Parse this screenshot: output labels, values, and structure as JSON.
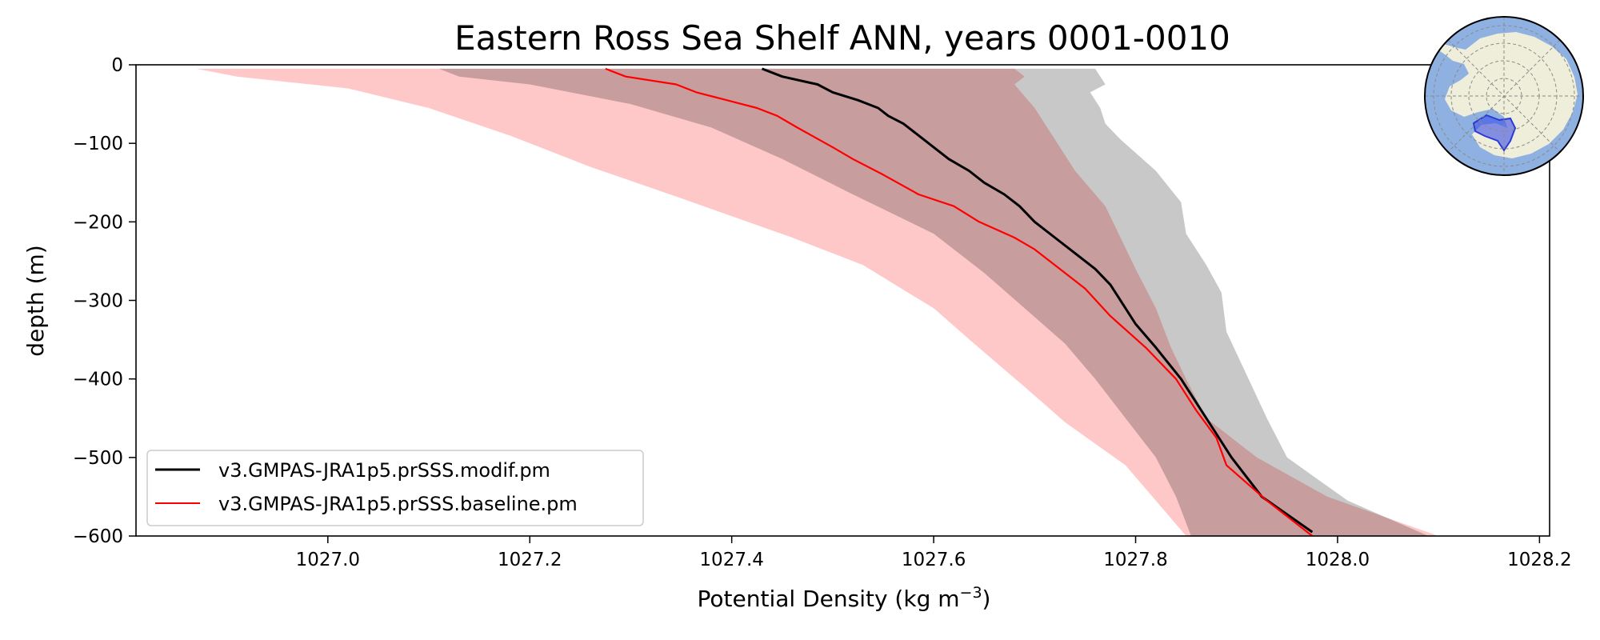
{
  "chart_data": {
    "type": "line",
    "title": "Eastern Ross Sea Shelf ANN, years 0001-0010",
    "xlabel_main": "Potential Density (kg m",
    "xlabel_sup": "−3",
    "xlabel_end": ")",
    "ylabel": "depth (m)",
    "xlim": [
      1026.81,
      1028.21
    ],
    "ylim": [
      -600,
      0
    ],
    "xticks": [
      1027.0,
      1027.2,
      1027.4,
      1027.6,
      1027.8,
      1028.0,
      1028.2
    ],
    "xtick_labels": [
      "1027.0",
      "1027.2",
      "1027.4",
      "1027.6",
      "1027.8",
      "1028.0",
      "1028.2"
    ],
    "yticks": [
      0,
      -100,
      -200,
      -300,
      -400,
      -500,
      -600
    ],
    "ytick_labels": [
      "0",
      "−100",
      "−200",
      "−300",
      "−400",
      "−500",
      "−600"
    ],
    "legend_position": "lower-left",
    "series": [
      {
        "name": "v3.GMPAS-JRA1p5.prSSS.modif.pm",
        "color": "#000000",
        "line": [
          [
            1027.43,
            -5
          ],
          [
            1027.45,
            -15
          ],
          [
            1027.485,
            -25
          ],
          [
            1027.5,
            -35
          ],
          [
            1027.525,
            -45
          ],
          [
            1027.545,
            -55
          ],
          [
            1027.555,
            -65
          ],
          [
            1027.57,
            -75
          ],
          [
            1027.585,
            -90
          ],
          [
            1027.6,
            -105
          ],
          [
            1027.615,
            -120
          ],
          [
            1027.635,
            -135
          ],
          [
            1027.65,
            -150
          ],
          [
            1027.67,
            -165
          ],
          [
            1027.685,
            -180
          ],
          [
            1027.7,
            -200
          ],
          [
            1027.72,
            -220
          ],
          [
            1027.74,
            -240
          ],
          [
            1027.76,
            -260
          ],
          [
            1027.775,
            -280
          ],
          [
            1027.8,
            -330
          ],
          [
            1027.82,
            -360
          ],
          [
            1027.845,
            -400
          ],
          [
            1027.87,
            -450
          ],
          [
            1027.895,
            -500
          ],
          [
            1027.925,
            -550
          ],
          [
            1027.975,
            -595
          ]
        ],
        "band_color": "#c8c8c8",
        "band_left": [
          [
            1027.11,
            -5
          ],
          [
            1027.13,
            -15
          ],
          [
            1027.2,
            -25
          ],
          [
            1027.3,
            -50
          ],
          [
            1027.38,
            -80
          ],
          [
            1027.45,
            -120
          ],
          [
            1027.52,
            -165
          ],
          [
            1027.56,
            -190
          ],
          [
            1027.6,
            -215
          ],
          [
            1027.65,
            -265
          ],
          [
            1027.69,
            -310
          ],
          [
            1027.73,
            -355
          ],
          [
            1027.76,
            -400
          ],
          [
            1027.79,
            -450
          ],
          [
            1027.82,
            -500
          ],
          [
            1027.84,
            -550
          ],
          [
            1027.855,
            -600
          ]
        ],
        "band_right": [
          [
            1027.76,
            -5
          ],
          [
            1027.77,
            -25
          ],
          [
            1027.755,
            -35
          ],
          [
            1027.765,
            -55
          ],
          [
            1027.77,
            -75
          ],
          [
            1027.785,
            -95
          ],
          [
            1027.82,
            -135
          ],
          [
            1027.845,
            -175
          ],
          [
            1027.85,
            -215
          ],
          [
            1027.87,
            -255
          ],
          [
            1027.885,
            -290
          ],
          [
            1027.89,
            -340
          ],
          [
            1027.91,
            -395
          ],
          [
            1027.93,
            -450
          ],
          [
            1027.95,
            -500
          ],
          [
            1028.01,
            -555
          ],
          [
            1028.09,
            -600
          ]
        ]
      },
      {
        "name": "v3.GMPAS-JRA1p5.prSSS.baseline.pm",
        "color": "#ff0000",
        "line": [
          [
            1027.275,
            -5
          ],
          [
            1027.295,
            -15
          ],
          [
            1027.345,
            -25
          ],
          [
            1027.365,
            -35
          ],
          [
            1027.395,
            -45
          ],
          [
            1027.425,
            -55
          ],
          [
            1027.445,
            -65
          ],
          [
            1027.465,
            -80
          ],
          [
            1027.5,
            -105
          ],
          [
            1027.52,
            -120
          ],
          [
            1027.55,
            -140
          ],
          [
            1027.585,
            -165
          ],
          [
            1027.62,
            -180
          ],
          [
            1027.645,
            -200
          ],
          [
            1027.68,
            -220
          ],
          [
            1027.7,
            -235
          ],
          [
            1027.725,
            -260
          ],
          [
            1027.75,
            -285
          ],
          [
            1027.775,
            -320
          ],
          [
            1027.81,
            -360
          ],
          [
            1027.84,
            -400
          ],
          [
            1027.86,
            -440
          ],
          [
            1027.88,
            -475
          ],
          [
            1027.89,
            -510
          ],
          [
            1027.93,
            -555
          ],
          [
            1027.975,
            -600
          ]
        ],
        "band_color": "#ffc8c8",
        "band_left": [
          [
            1026.87,
            -5
          ],
          [
            1026.91,
            -15
          ],
          [
            1027.02,
            -30
          ],
          [
            1027.1,
            -55
          ],
          [
            1027.18,
            -90
          ],
          [
            1027.26,
            -130
          ],
          [
            1027.35,
            -170
          ],
          [
            1027.46,
            -220
          ],
          [
            1027.53,
            -255
          ],
          [
            1027.6,
            -310
          ],
          [
            1027.64,
            -355
          ],
          [
            1027.69,
            -410
          ],
          [
            1027.73,
            -455
          ],
          [
            1027.79,
            -510
          ],
          [
            1027.82,
            -555
          ],
          [
            1027.85,
            -600
          ]
        ],
        "band_right": [
          [
            1027.68,
            -5
          ],
          [
            1027.69,
            -15
          ],
          [
            1027.68,
            -25
          ],
          [
            1027.7,
            -55
          ],
          [
            1027.72,
            -95
          ],
          [
            1027.74,
            -135
          ],
          [
            1027.77,
            -180
          ],
          [
            1027.785,
            -220
          ],
          [
            1027.8,
            -260
          ],
          [
            1027.82,
            -310
          ],
          [
            1027.835,
            -360
          ],
          [
            1027.85,
            -400
          ],
          [
            1027.87,
            -450
          ],
          [
            1027.92,
            -500
          ],
          [
            1027.99,
            -550
          ],
          [
            1028.1,
            -600
          ]
        ]
      }
    ],
    "inset_map": {
      "description": "south polar stereographic map with region outline",
      "ocean_color": "#8eb1e2",
      "land_color": "#efeedb",
      "region_color": "#3a4fe8"
    }
  }
}
